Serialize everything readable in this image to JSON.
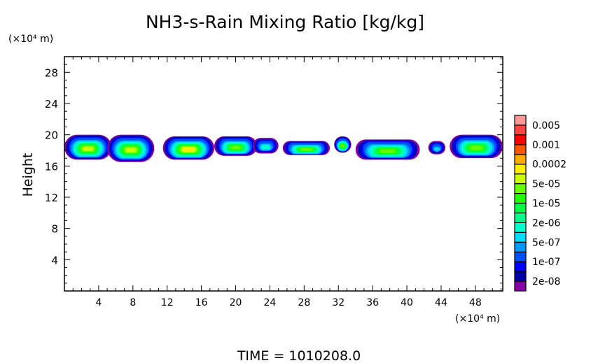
{
  "chart_data": {
    "type": "heatmap",
    "title": "NH3-s-Rain Mixing Ratio [kg/kg]",
    "xlabel": "",
    "ylabel": "Height",
    "x_unit": "(×10⁴ m)",
    "y_unit": "(×10⁴ m)",
    "xlim": [
      0,
      51.2
    ],
    "ylim": [
      0,
      30
    ],
    "xticks": [
      "4",
      "8",
      "12",
      "16",
      "20",
      "24",
      "28",
      "32",
      "36",
      "40",
      "44",
      "48"
    ],
    "yticks": [
      "4",
      "8",
      "12",
      "16",
      "20",
      "24",
      "28"
    ],
    "colorbar": {
      "colors": [
        "#8800a8",
        "#0000aa",
        "#0000ff",
        "#0050ff",
        "#0099ff",
        "#00ddff",
        "#00ffcc",
        "#00ff88",
        "#00ff44",
        "#22ff00",
        "#66ff00",
        "#ccff00",
        "#ffee00",
        "#ffaa00",
        "#ff5500",
        "#ff0000",
        "#ff4444",
        "#ff9999"
      ],
      "labels": [
        "2e-08",
        "1e-07",
        "5e-07",
        "2e-06",
        "1e-05",
        "5e-05",
        "0.0002",
        "0.001",
        "0.005"
      ]
    },
    "blobs": [
      {
        "x0": 0,
        "x1": 5.5,
        "y0": 16.8,
        "y1": 20,
        "peak": 11
      },
      {
        "x0": 5,
        "x1": 10.5,
        "y0": 16.5,
        "y1": 20,
        "peak": 11
      },
      {
        "x0": 11.5,
        "x1": 17.5,
        "y0": 16.8,
        "y1": 19.8,
        "peak": 12
      },
      {
        "x0": 17.5,
        "x1": 22.5,
        "y0": 17.3,
        "y1": 19.8,
        "peak": 10
      },
      {
        "x0": 22,
        "x1": 25,
        "y0": 17.6,
        "y1": 19.6,
        "peak": 6
      },
      {
        "x0": 25.5,
        "x1": 31,
        "y0": 17.4,
        "y1": 19.2,
        "peak": 10
      },
      {
        "x0": 31.5,
        "x1": 33.5,
        "y0": 17.7,
        "y1": 19.8,
        "peak": 10
      },
      {
        "x0": 34,
        "x1": 41.5,
        "y0": 16.8,
        "y1": 19.4,
        "peak": 10
      },
      {
        "x0": 42.5,
        "x1": 44.5,
        "y0": 17.5,
        "y1": 19.2,
        "peak": 5
      },
      {
        "x0": 45,
        "x1": 51.2,
        "y0": 17,
        "y1": 20,
        "peak": 10
      }
    ],
    "grid": false,
    "legend": "right"
  },
  "footer": {
    "time_label": "TIME = 1010208.0"
  }
}
